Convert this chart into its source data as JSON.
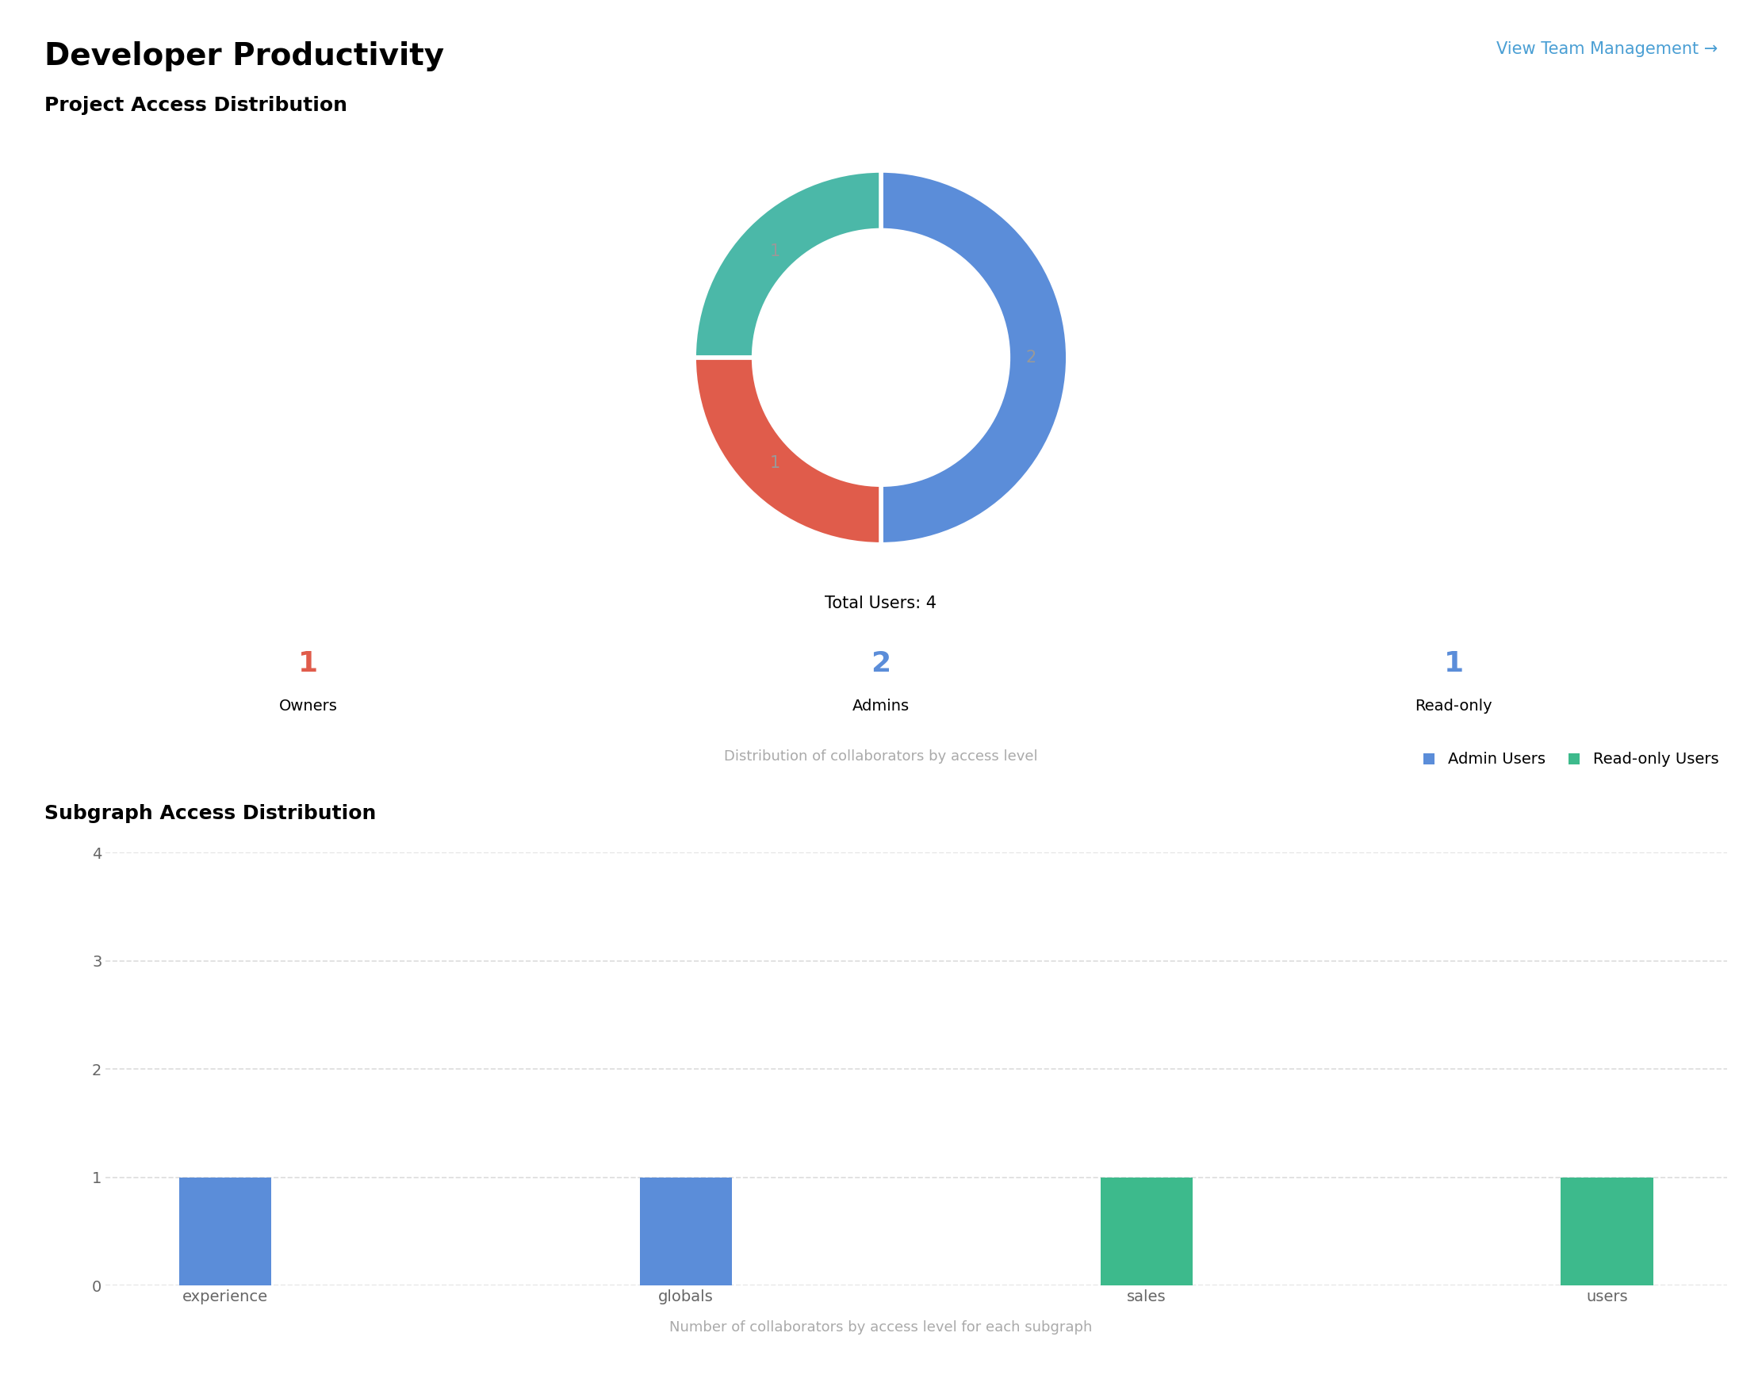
{
  "title": "Developer Productivity",
  "link_text": "View Team Management →",
  "link_color": "#4a9fd4",
  "section1_title": "Project Access Distribution",
  "donut_values": [
    2,
    1,
    1
  ],
  "donut_labels": [
    "Admins",
    "Owners",
    "Read-only"
  ],
  "donut_colors": [
    "#5b8dd9",
    "#e05c4b",
    "#4bb8a8"
  ],
  "donut_label_values": [
    "2",
    "1",
    "1"
  ],
  "total_users_label": "Total Users: 4",
  "stats": [
    {
      "value": "1",
      "label": "Owners",
      "color": "#e05c4b"
    },
    {
      "value": "2",
      "label": "Admins",
      "color": "#5b8dd9"
    },
    {
      "value": "1",
      "label": "Read-only",
      "color": "#5b8dd9"
    }
  ],
  "caption1": "Distribution of collaborators by access level",
  "section2_title": "Subgraph Access Distribution",
  "bar_categories": [
    "experience",
    "globals",
    "sales",
    "users"
  ],
  "admin_values": [
    1,
    1,
    0,
    0
  ],
  "readonly_values": [
    0,
    0,
    1,
    1
  ],
  "admin_color": "#5b8dd9",
  "readonly_color": "#3dba8c",
  "legend_admin": "Admin Users",
  "legend_readonly": "Read-only Users",
  "caption2": "Number of collaborators by access level for each subgraph",
  "ylim": [
    0,
    4
  ],
  "yticks": [
    0,
    1,
    2,
    3,
    4
  ],
  "bg_color": "#ffffff",
  "text_color": "#000000",
  "label_color": "#999999",
  "caption_color": "#aaaaaa",
  "grid_color": "#dddddd",
  "tick_color": "#666666"
}
